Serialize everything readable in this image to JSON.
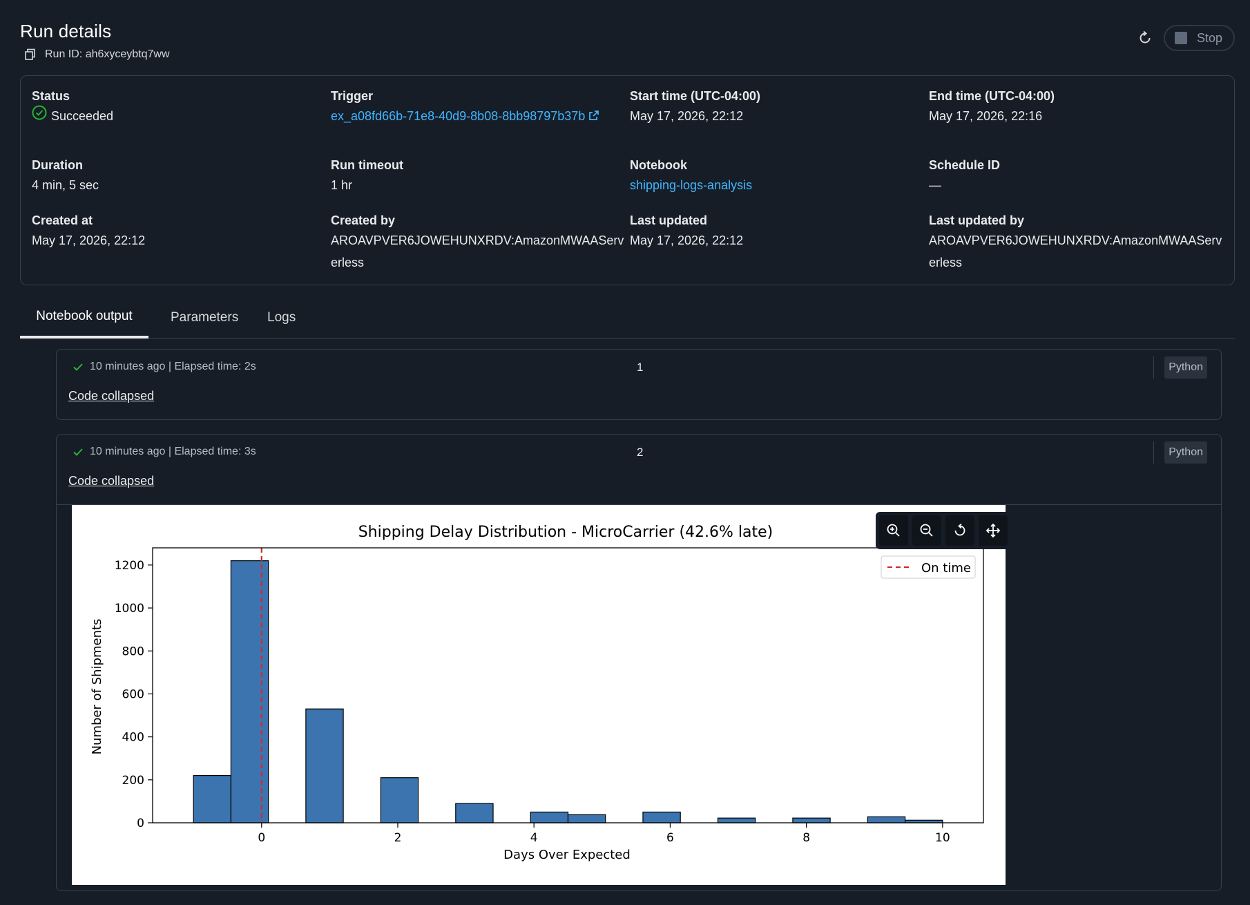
{
  "header": {
    "title": "Run details",
    "run_id": "Run ID: ah6xyceybtq7ww",
    "stop_label": "Stop"
  },
  "details": {
    "status_label": "Status",
    "status_value": "Succeeded",
    "trigger_label": "Trigger",
    "trigger_value": "ex_a08fd66b-71e8-40d9-8b08-8bb98797b37b",
    "start_label": "Start time (UTC-04:00)",
    "start_value": "May 17, 2026, 22:12",
    "end_label": "End time (UTC-04:00)",
    "end_value": "May 17, 2026, 22:16",
    "duration_label": "Duration",
    "duration_value": "4 min, 5 sec",
    "timeout_label": "Run timeout",
    "timeout_value": "1 hr",
    "notebook_label": "Notebook",
    "notebook_value": "shipping-logs-analysis",
    "schedule_label": "Schedule ID",
    "schedule_value": "—",
    "created_at_label": "Created at",
    "created_at_value": "May 17, 2026, 22:12",
    "created_by_label": "Created by",
    "created_by_value": "AROAVPVER6JOWEHUNXRDV:AmazonMWAAServerless",
    "updated_label": "Last updated",
    "updated_value": "May 17, 2026, 22:12",
    "updated_by_label": "Last updated by",
    "updated_by_value": "AROAVPVER6JOWEHUNXRDV:AmazonMWAAServerless"
  },
  "tabs": [
    "Notebook output",
    "Parameters",
    "Logs"
  ],
  "cells": [
    {
      "meta": "10 minutes ago | Elapsed time: 2s",
      "number": "1",
      "language": "Python",
      "code_state": "Code collapsed"
    },
    {
      "meta": "10 minutes ago | Elapsed time: 3s",
      "number": "2",
      "language": "Python",
      "code_state": "Code collapsed"
    }
  ],
  "colors": {
    "background": "#161d26",
    "link": "#42b4ff",
    "success": "#2bb534",
    "bar_fill": "#3c74b0",
    "on_time_line": "#d62728"
  },
  "chart_data": {
    "type": "bar",
    "title": "Shipping Delay Distribution - MicroCarrier (42.6% late)",
    "xlabel": "Days Over Expected",
    "ylabel": "Number of Shipments",
    "xlim": [
      -1.6,
      10.6
    ],
    "ylim": [
      0,
      1280
    ],
    "xticks": [
      0,
      2,
      4,
      6,
      8,
      10
    ],
    "yticks": [
      0,
      200,
      400,
      600,
      800,
      1000,
      1200
    ],
    "bin_width": 0.55,
    "bins": [
      {
        "x": -1.0,
        "value": 220
      },
      {
        "x": -0.45,
        "value": 1220
      },
      {
        "x": 0.65,
        "value": 530
      },
      {
        "x": 1.75,
        "value": 210
      },
      {
        "x": 2.85,
        "value": 90
      },
      {
        "x": 3.95,
        "value": 50
      },
      {
        "x": 4.5,
        "value": 38
      },
      {
        "x": 5.6,
        "value": 50
      },
      {
        "x": 6.7,
        "value": 22
      },
      {
        "x": 7.8,
        "value": 22
      },
      {
        "x": 8.9,
        "value": 28
      },
      {
        "x": 9.45,
        "value": 12
      }
    ],
    "reference_line": {
      "x": 0,
      "label": "On time"
    },
    "legend_position": "top-right",
    "grid": false
  }
}
